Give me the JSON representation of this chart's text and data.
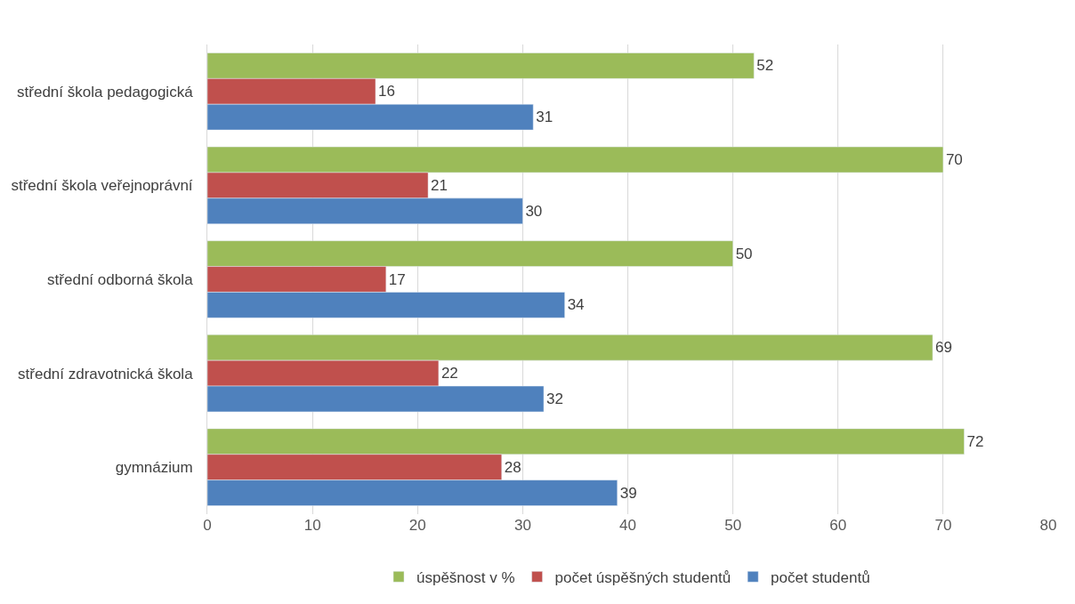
{
  "chart_data": {
    "type": "bar",
    "orientation": "horizontal",
    "categories": [
      "střední škola pedagogická",
      "střední škola veřejnoprávní",
      "střední odborná škola",
      "střední zdravotnická škola",
      "gymnázium"
    ],
    "series": [
      {
        "name": "úspěšnost v %",
        "color": "#9bbb59",
        "values": [
          52,
          70,
          50,
          69,
          72
        ]
      },
      {
        "name": "počet úspěšných studentů",
        "color": "#c0504d",
        "values": [
          16,
          21,
          17,
          22,
          28
        ]
      },
      {
        "name": "počet studentů",
        "color": "#4f81bd",
        "values": [
          31,
          30,
          34,
          32,
          39
        ]
      }
    ],
    "xlim": [
      0,
      80
    ],
    "xticks": [
      0,
      10,
      20,
      30,
      40,
      50,
      60,
      70,
      80
    ],
    "grid": "x",
    "legend": "bottom",
    "data_labels": true
  }
}
